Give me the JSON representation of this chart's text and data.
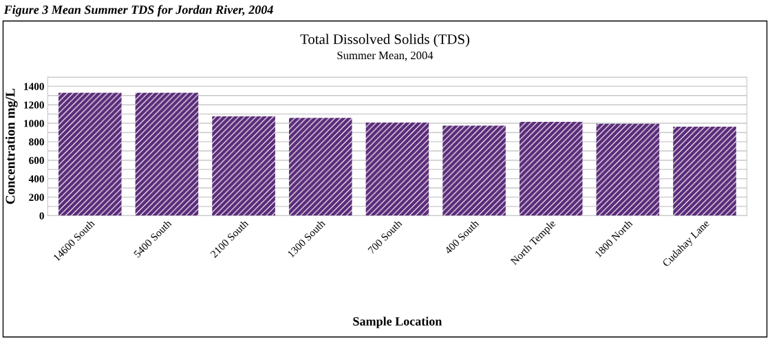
{
  "chart_data": {
    "type": "bar",
    "title": "Total Dissolved Solids (TDS)",
    "subtitle": "Summer Mean, 2004",
    "xlabel": "Sample Location",
    "ylabel": "Concentration mg/L",
    "annotations": [
      "Figure 3 Mean Summer TDS for Jordan River, 2004"
    ],
    "categories": [
      "14600 South",
      "5400 South",
      "2100 South",
      "1300 South",
      "700 South",
      "400 South",
      "North Temple",
      "1800 North",
      "Cudahay Lane"
    ],
    "values": [
      1330,
      1330,
      1075,
      1058,
      1007,
      974,
      1016,
      994,
      963
    ],
    "color": "#5b2c7a",
    "ylim": [
      0,
      1500
    ],
    "yticks": [
      0,
      {
        "value": 100,
        "label": null
      },
      200,
      {
        "value": 300,
        "label": null
      },
      400,
      {
        "value": 500,
        "label": null
      },
      600,
      {
        "value": 700,
        "label": null
      },
      800,
      {
        "value": 900,
        "label": null
      },
      1000,
      {
        "value": 1100,
        "label": null
      },
      1200,
      {
        "value": 1300,
        "label": null
      },
      1400,
      {
        "value": 1500,
        "label": null
      }
    ],
    "grid": "y",
    "legend": false
  }
}
